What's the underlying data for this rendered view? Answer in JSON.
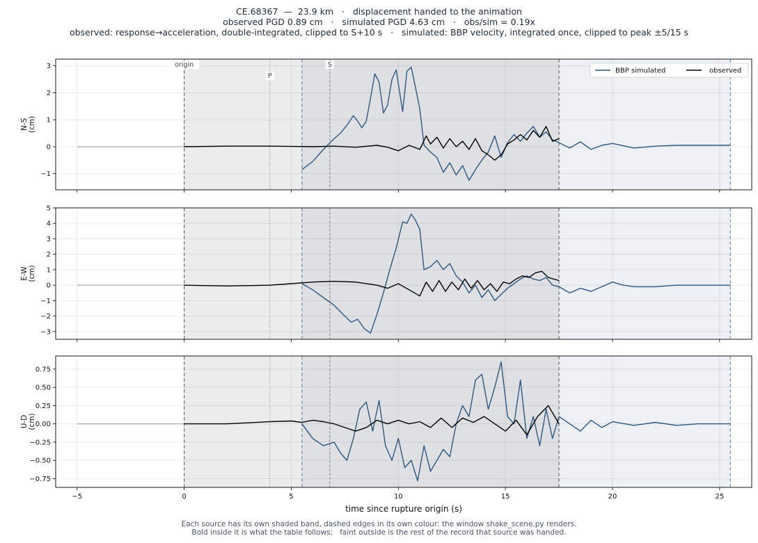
{
  "title": {
    "line1": "CE.68367  —  23.9 km   ·   displacement handed to the animation",
    "line2": "observed PGD 0.89 cm   ·   simulated PGD 4.63 cm   ·   obs/sim = 0.19x",
    "line3": "observed: response→acceleration, double-integrated, clipped to S+10 s   ·   simulated: BBP velocity, integrated once, clipped to peak ±5/15 s"
  },
  "footer": {
    "line1": "Each source has its own shaded band, dashed edges in its own colour: the window shake_scene.py renders.",
    "line2": "Bold inside it is what the table follows;   faint outside is the rest of the record that source was handed."
  },
  "colors": {
    "simulated": "#2d5680",
    "observed": "#000000",
    "faint": "#aaaaaa",
    "obs_band": "#ececec",
    "overlap_band": "#dfe0e3",
    "sim_band": "#edf1f5",
    "sim_edge": "#6b87a6",
    "obs_edge": "#666666"
  },
  "chart_data": {
    "type": "line",
    "xlabel": "time since rupture origin (s)",
    "xlim": [
      -6,
      26.5
    ],
    "xticks": [
      -5,
      0,
      5,
      10,
      15,
      20,
      25
    ],
    "markers": [
      {
        "label": "origin",
        "t": 0
      },
      {
        "label": "P",
        "t": 4.0
      },
      {
        "label": "S",
        "t": 6.8
      }
    ],
    "windows": {
      "observed": [
        0,
        17.5
      ],
      "simulated": [
        5.5,
        25.5
      ]
    },
    "legend": {
      "position": "top-right",
      "entries": [
        {
          "label": "BBP simulated",
          "series": "simulated"
        },
        {
          "label": "observed",
          "series": "observed"
        }
      ]
    },
    "panels": [
      {
        "ylabel": "N-S\n(cm)",
        "ylim": [
          -1.6,
          3.25
        ],
        "yticks": [
          -1,
          0,
          1,
          2,
          3
        ],
        "yticklabels": [
          "−1",
          "0",
          "1",
          "2",
          "3"
        ],
        "simulated": {
          "t": [
            5.5,
            6.0,
            6.5,
            7.0,
            7.3,
            7.6,
            7.9,
            8.1,
            8.3,
            8.5,
            8.7,
            8.9,
            9.1,
            9.3,
            9.5,
            9.7,
            9.9,
            10.2,
            10.4,
            10.6,
            10.8,
            11.0,
            11.2,
            11.5,
            11.8,
            12.1,
            12.4,
            12.7,
            13.0,
            13.3,
            13.6,
            13.9,
            14.2,
            14.5,
            14.8,
            15.1,
            15.4,
            15.7,
            16.0,
            16.3,
            16.6,
            16.9,
            17.2,
            17.5,
            18.0,
            18.5,
            19.0,
            19.5,
            20.0,
            21.0,
            22.0,
            23.0,
            24.0,
            25.0,
            25.5
          ],
          "v": [
            -0.85,
            -0.55,
            -0.1,
            0.3,
            0.5,
            0.8,
            1.15,
            0.95,
            0.7,
            0.95,
            1.8,
            2.7,
            2.4,
            1.25,
            1.55,
            2.5,
            2.85,
            1.3,
            2.8,
            2.95,
            2.2,
            1.4,
            0.05,
            -0.2,
            -0.4,
            -0.95,
            -0.6,
            -1.05,
            -0.7,
            -1.25,
            -0.85,
            -0.5,
            -0.2,
            0.4,
            -0.4,
            0.15,
            0.45,
            0.2,
            0.5,
            0.75,
            0.35,
            0.55,
            0.25,
            0.15,
            -0.05,
            0.18,
            -0.1,
            0.05,
            0.12,
            -0.05,
            0.02,
            0.05,
            0.05,
            0.05,
            0.05
          ]
        },
        "observed": {
          "t": [
            0,
            2,
            4,
            5,
            6,
            7,
            8,
            9,
            9.5,
            10,
            10.5,
            11,
            11.3,
            11.5,
            11.8,
            12.1,
            12.4,
            12.7,
            13,
            13.3,
            13.6,
            13.9,
            14.2,
            14.5,
            14.8,
            15.1,
            15.4,
            15.7,
            16,
            16.3,
            16.6,
            16.9,
            17.2,
            17.5
          ],
          "v": [
            0,
            0.02,
            0.02,
            0.01,
            0,
            0.02,
            -0.02,
            0.05,
            -0.02,
            -0.15,
            0.05,
            -0.1,
            0.4,
            0.1,
            0.35,
            -0.05,
            0.3,
            0.0,
            0.2,
            -0.1,
            0.3,
            -0.15,
            -0.3,
            -0.5,
            -0.3,
            0.1,
            0.25,
            0.45,
            0.25,
            0.6,
            0.35,
            0.75,
            0.2,
            0.3
          ]
        },
        "faint_pre": {
          "t": [
            -5,
            0
          ],
          "v": [
            0,
            0
          ]
        }
      },
      {
        "ylabel": "E-W\n(cm)",
        "ylim": [
          -3.5,
          5.0
        ],
        "yticks": [
          -3,
          -2,
          -1,
          0,
          1,
          2,
          3,
          4,
          5
        ],
        "yticklabels": [
          "−3",
          "−2",
          "−1",
          "0",
          "1",
          "2",
          "3",
          "4",
          "5"
        ],
        "simulated": {
          "t": [
            5.5,
            6.0,
            6.5,
            7.0,
            7.5,
            7.8,
            8.1,
            8.4,
            8.7,
            9.0,
            9.3,
            9.6,
            9.9,
            10.2,
            10.4,
            10.6,
            10.8,
            11.0,
            11.2,
            11.5,
            11.8,
            12.1,
            12.4,
            12.7,
            13.0,
            13.3,
            13.6,
            13.9,
            14.2,
            14.5,
            14.8,
            15.1,
            15.4,
            15.7,
            16.0,
            16.3,
            16.6,
            16.9,
            17.2,
            17.5,
            18.0,
            18.5,
            19.0,
            19.5,
            20.0,
            20.5,
            21.0,
            22.0,
            23.0,
            24.0,
            25.0,
            25.5
          ],
          "v": [
            0.1,
            -0.3,
            -0.8,
            -1.3,
            -2.0,
            -2.4,
            -2.2,
            -2.8,
            -3.1,
            -1.9,
            -0.5,
            1.0,
            2.4,
            4.1,
            4.0,
            4.6,
            4.2,
            3.6,
            1.0,
            1.2,
            1.6,
            1.0,
            1.4,
            0.6,
            0.2,
            -0.5,
            0.0,
            -0.8,
            -0.3,
            -1.0,
            -0.6,
            -0.2,
            0.1,
            0.4,
            0.6,
            0.4,
            0.3,
            0.5,
            0.0,
            -0.1,
            -0.5,
            -0.2,
            -0.4,
            -0.1,
            0.2,
            0.0,
            -0.1,
            -0.1,
            0.0,
            0.0,
            0.0,
            0.0
          ]
        },
        "observed": {
          "t": [
            0,
            2,
            4,
            5,
            6,
            7,
            8,
            9,
            9.5,
            10,
            10.5,
            11,
            11.3,
            11.6,
            11.9,
            12.2,
            12.5,
            12.8,
            13.1,
            13.4,
            13.7,
            14.0,
            14.3,
            14.6,
            14.9,
            15.2,
            15.5,
            15.8,
            16.1,
            16.4,
            16.7,
            17.0,
            17.5
          ],
          "v": [
            0,
            -0.05,
            0.0,
            0.1,
            0.2,
            0.25,
            0.2,
            0.0,
            -0.2,
            0.1,
            -0.3,
            -0.7,
            0.2,
            -0.4,
            0.3,
            -0.4,
            0.2,
            -0.3,
            0.4,
            -0.2,
            0.3,
            -0.3,
            0.1,
            -0.4,
            0.2,
            0.1,
            0.4,
            0.6,
            0.5,
            0.8,
            0.9,
            0.5,
            0.3
          ]
        },
        "faint_pre": {
          "t": [
            -5,
            0
          ],
          "v": [
            0,
            0
          ]
        }
      },
      {
        "ylabel": "U-D\n(cm)",
        "ylim": [
          -0.87,
          0.93
        ],
        "yticks": [
          -0.75,
          -0.5,
          -0.25,
          0.0,
          0.25,
          0.5,
          0.75
        ],
        "yticklabels": [
          "−0.75",
          "−0.50",
          "−0.25",
          "0.00",
          "0.25",
          "0.50",
          "0.75"
        ],
        "simulated": {
          "t": [
            5.5,
            6.0,
            6.5,
            7.0,
            7.3,
            7.6,
            7.9,
            8.2,
            8.5,
            8.8,
            9.1,
            9.4,
            9.7,
            10.0,
            10.3,
            10.6,
            10.9,
            11.2,
            11.5,
            11.8,
            12.1,
            12.4,
            12.7,
            13.0,
            13.3,
            13.6,
            13.9,
            14.2,
            14.5,
            14.8,
            15.1,
            15.4,
            15.7,
            16.0,
            16.3,
            16.6,
            16.9,
            17.2,
            17.5,
            18.0,
            18.5,
            19.0,
            19.5,
            20.0,
            21.0,
            22.0,
            23.0,
            24.0,
            25.0,
            25.5
          ],
          "v": [
            0.0,
            -0.2,
            -0.3,
            -0.25,
            -0.4,
            -0.5,
            -0.2,
            0.2,
            0.3,
            -0.1,
            0.32,
            -0.3,
            -0.5,
            -0.2,
            -0.6,
            -0.5,
            -0.78,
            -0.3,
            -0.65,
            -0.5,
            -0.35,
            -0.45,
            0.0,
            0.25,
            0.1,
            0.6,
            0.68,
            0.2,
            0.5,
            0.85,
            0.1,
            0.0,
            0.6,
            -0.2,
            0.1,
            -0.3,
            0.2,
            -0.2,
            0.1,
            0.0,
            -0.1,
            0.05,
            -0.05,
            0.03,
            -0.02,
            0.02,
            -0.02,
            0.0,
            0.0,
            0.0
          ]
        },
        "observed": {
          "t": [
            0,
            2,
            4,
            5,
            5.5,
            6,
            6.5,
            7,
            7.5,
            8,
            8.5,
            9,
            9.5,
            10,
            10.5,
            11,
            11.5,
            12,
            12.5,
            13,
            13.5,
            14,
            14.5,
            15,
            15.5,
            16,
            16.5,
            17,
            17.5
          ],
          "v": [
            0,
            0.0,
            0.03,
            0.04,
            0.02,
            0.05,
            0.03,
            0.0,
            -0.05,
            -0.1,
            -0.05,
            0.05,
            0.0,
            0.05,
            0.0,
            0.03,
            -0.05,
            0.08,
            -0.05,
            0.08,
            0.02,
            0.1,
            0.0,
            -0.1,
            0.05,
            -0.15,
            0.1,
            0.25,
            0.0
          ]
        },
        "faint_pre": {
          "t": [
            -5,
            0
          ],
          "v": [
            0,
            0
          ]
        }
      }
    ]
  }
}
